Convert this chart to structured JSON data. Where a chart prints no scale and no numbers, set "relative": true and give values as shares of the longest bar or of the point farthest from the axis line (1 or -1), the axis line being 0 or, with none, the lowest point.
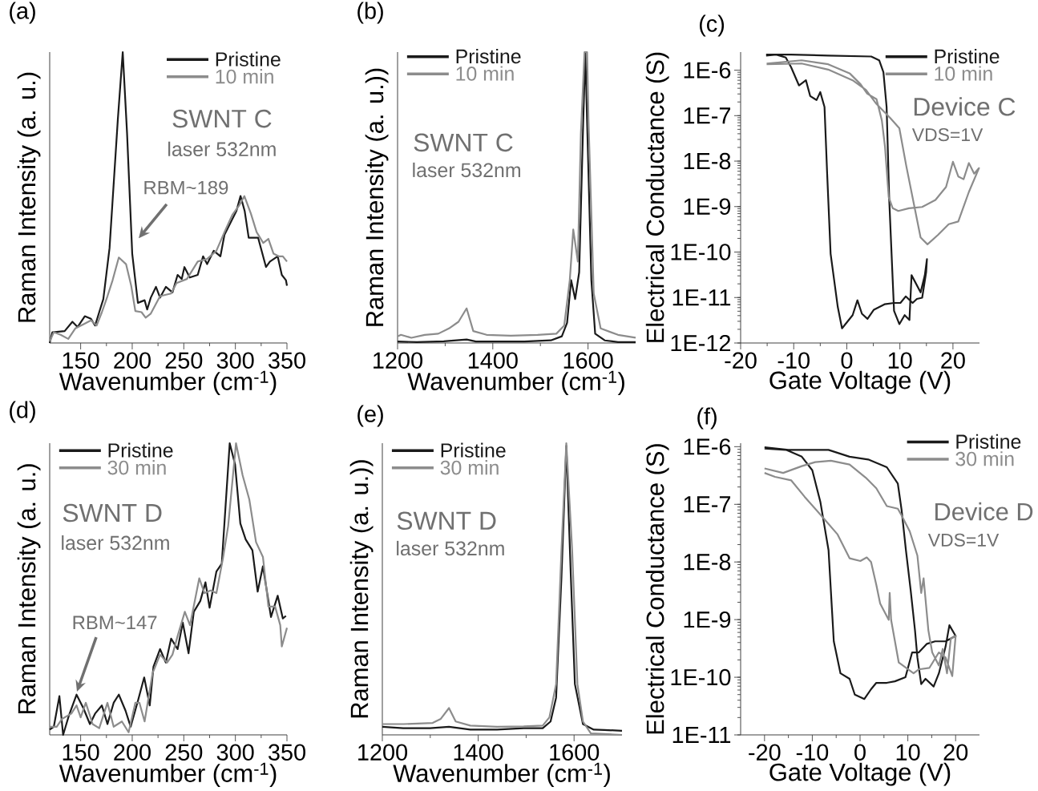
{
  "chart_data": [
    {
      "type": "line",
      "title": "(a)",
      "xlabel": "Wavenumber (cm$^{-1}$)",
      "ylabel": "Raman Intensity (a. u.)",
      "relative": true,
      "xlim": [
        120,
        350
      ],
      "xticks": [
        150,
        200,
        250,
        300,
        350
      ],
      "legend": "top right",
      "series": [
        {
          "name": "Pristine",
          "color": "#1a1a1a",
          "x": [
            120,
            122.6,
            134.5,
            142,
            147,
            154,
            160,
            164,
            168,
            172,
            178,
            186,
            190.8,
            195,
            200,
            205.5,
            212,
            214.5,
            218,
            223,
            227,
            232.6,
            239,
            244,
            248,
            250.6,
            255.8,
            263.5,
            268.7,
            272.6,
            279,
            285.5,
            289.4,
            295.8,
            301,
            305,
            309,
            312.9,
            322,
            329.7,
            333.5,
            341,
            345,
            349,
            350
          ],
          "values": [
            0,
            0.037,
            0.041,
            0.073,
            0.055,
            0.092,
            0.083,
            0.06,
            0.106,
            0.151,
            0.326,
            0.766,
            1.0,
            0.72,
            0.307,
            0.138,
            0.147,
            0.115,
            0.156,
            0.193,
            0.156,
            0.193,
            0.174,
            0.234,
            0.22,
            0.261,
            0.225,
            0.234,
            0.298,
            0.271,
            0.317,
            0.298,
            0.372,
            0.417,
            0.454,
            0.505,
            0.454,
            0.362,
            0.362,
            0.261,
            0.28,
            0.298,
            0.234,
            0.216,
            0.197
          ]
        },
        {
          "name": "10 min",
          "color": "#8c8c8c",
          "x": [
            120,
            124,
            130.6,
            138,
            144.8,
            152.6,
            160,
            165.5,
            170.6,
            176,
            181,
            187,
            194,
            199,
            203,
            209,
            213,
            218,
            227,
            237.7,
            242.9,
            253,
            263.5,
            272.6,
            281.6,
            289.4,
            297,
            303.5,
            308.7,
            315,
            320.6,
            327,
            332,
            337,
            342,
            346,
            350
          ],
          "values": [
            0.005,
            0.037,
            0.028,
            0.014,
            0.05,
            0.064,
            0.078,
            0.06,
            0.106,
            0.161,
            0.216,
            0.294,
            0.271,
            0.197,
            0.11,
            0.106,
            0.087,
            0.101,
            0.161,
            0.17,
            0.206,
            0.22,
            0.28,
            0.289,
            0.317,
            0.381,
            0.44,
            0.472,
            0.505,
            0.445,
            0.381,
            0.344,
            0.358,
            0.307,
            0.298,
            0.298,
            0.28
          ]
        }
      ],
      "annotations": [
        "SWNT C",
        "laser 532nm",
        "RBM~189"
      ]
    },
    {
      "type": "line",
      "title": "(b)",
      "xlabel": "Wavenumber (cm$^{-1}$)",
      "ylabel": "Raman Intensity (a. u.))",
      "relative": true,
      "xlim": [
        1200,
        1700
      ],
      "xticks": [
        1200,
        1400,
        1600
      ],
      "legend": "top left",
      "series": [
        {
          "name": "Pristine",
          "color": "#1a1a1a",
          "x": [
            1200,
            1240.6,
            1297,
            1345,
            1364.5,
            1466,
            1522,
            1545,
            1556,
            1564.5,
            1573,
            1581.4,
            1590,
            1594.4,
            1598,
            1607,
            1615,
            1635,
            1663,
            1700
          ],
          "values": [
            0.005,
            0.003,
            0.006,
            0.012,
            0.005,
            0.005,
            0.009,
            0.023,
            0.069,
            0.216,
            0.151,
            0.243,
            0.766,
            1.0,
            0.766,
            0.216,
            0.032,
            0.009,
            0.003,
            0.003
          ]
        },
        {
          "name": "10 min",
          "color": "#8c8c8c",
          "x": [
            1200,
            1207,
            1229,
            1257,
            1285.6,
            1308,
            1328,
            1345,
            1359,
            1387,
            1437.7,
            1494,
            1533.5,
            1550,
            1561.7,
            1569,
            1578.6,
            1585,
            1592.7,
            1598,
            1601,
            1612,
            1626.5,
            1663,
            1700
          ],
          "values": [
            0.023,
            0.028,
            0.018,
            0.028,
            0.032,
            0.05,
            0.073,
            0.119,
            0.041,
            0.028,
            0.025,
            0.028,
            0.032,
            0.06,
            0.216,
            0.39,
            0.28,
            0.72,
            1.0,
            1.0,
            0.766,
            0.17,
            0.05,
            0.028,
            0.018
          ]
        }
      ],
      "annotations": [
        "SWNT C",
        "laser 532nm"
      ]
    },
    {
      "type": "line",
      "title": "(c)",
      "xlabel": "Gate Voltage (V)",
      "ylabel": "Electrical Conductance (S)",
      "log": "y",
      "xlim": [
        -20,
        25
      ],
      "xticks": [
        -20,
        -10,
        0,
        10,
        20
      ],
      "ylim": [
        1e-12,
        2.5e-06
      ],
      "yticks": [
        {
          "value": 1e-12,
          "label": "1E-12"
        },
        {
          "value": 1e-11,
          "label": "1E-11"
        },
        {
          "value": 1e-10,
          "label": "1E-10"
        },
        {
          "value": 1e-09,
          "label": "1E-9"
        },
        {
          "value": 1e-08,
          "label": "1E-8"
        },
        {
          "value": 1e-07,
          "label": "1E-7"
        },
        {
          "value": 1e-06,
          "label": "1E-6"
        }
      ],
      "legend": "top right",
      "series": [
        {
          "name": "Pristine",
          "color": "#1a1a1a",
          "x": [
            -15.2,
            -10.5,
            -3.5,
            4.6,
            6.1,
            6.9,
            7.5,
            8.0,
            8.65,
            8.9,
            9.9,
            10.9,
            11.8,
            12.2,
            13.9,
            14.7,
            15.1,
            14.95,
            14.2,
            13.2,
            12.4,
            11.1,
            10.1,
            8.9,
            7.1,
            5.1,
            3.9,
            2.85,
            2.0,
            1.1,
            -0.9,
            -1.7,
            -3.05,
            -3.7,
            -4.2,
            -5.0,
            -5.7,
            -6.9,
            -7.7,
            -9.0,
            -10.5,
            -11.5,
            -13.3,
            -15.2
          ],
          "values": [
            2.2e-06,
            2.2e-06,
            2.1e-06,
            2e-06,
            1.65e-06,
            9e-07,
            1.55e-07,
            1.37e-09,
            2.4e-11,
            5.1e-12,
            2.6e-12,
            4.1e-12,
            3.2e-12,
            3.1e-11,
            1.3e-11,
            3.1e-11,
            7e-11,
            3.6e-11,
            9.9e-12,
            9.3e-12,
            7.6e-12,
            1.06e-11,
            7.6e-12,
            7.6e-12,
            7.1e-12,
            5.4e-12,
            3.4e-12,
            4.4e-12,
            8.7e-12,
            4.1e-12,
            2.1e-12,
            6.2e-12,
            9.2e-11,
            5.3e-09,
            1.55e-07,
            3.3e-07,
            2.2e-07,
            2.7e-07,
            6e-07,
            4.6e-07,
            1.17e-06,
            1.9e-06,
            2.2e-06,
            2.1e-06
          ]
        },
        {
          "name": "10 min",
          "color": "#8c8c8c",
          "x": [
            -15.1,
            -8.5,
            -3.5,
            1.1,
            3.6,
            5.6,
            8.15,
            9.9,
            11.2,
            12.7,
            13.9,
            15.2,
            17.2,
            19.2,
            21.0,
            23.0,
            24.9,
            24.0,
            23.0,
            22.0,
            21.0,
            20.0,
            18.7,
            16.7,
            14.2,
            11.7,
            9.7,
            8.65,
            7.9,
            7.2,
            6.6,
            5.6,
            3.85,
            2.6,
            0.6,
            -3.5,
            -8.5,
            -15.1
          ],
          "values": [
            1.35e-06,
            1.4e-06,
            1.03e-06,
            6e-07,
            3.7e-07,
            1.8e-07,
            9e-08,
            5.3e-08,
            7.9e-09,
            1.05e-09,
            2.1e-10,
            1.48e-10,
            2.4e-10,
            4.1e-10,
            4.7e-10,
            2.1e-09,
            7e-09,
            5.3e-09,
            9.1e-09,
            4e-09,
            4.6e-09,
            9.7e-09,
            2.7e-09,
            1.4e-09,
            9.8e-10,
            9.2e-10,
            8e-10,
            9.2e-10,
            1.6e-09,
            2.05e-08,
            7.9e-08,
            2.3e-07,
            3.05e-07,
            4.9e-07,
            8.4e-07,
            1.35e-06,
            1.65e-06,
            1.4e-06
          ]
        }
      ],
      "annotations": [
        "Device C",
        "VDS=1V"
      ]
    },
    {
      "type": "line",
      "title": "(d)",
      "xlabel": "Wavenumber (cm$^{-1}$)",
      "ylabel": "Raman Intensity (a. u.)",
      "relative": true,
      "xlim": [
        120,
        350
      ],
      "xticks": [
        150,
        200,
        250,
        300,
        350
      ],
      "legend": "top left",
      "series": [
        {
          "name": "Pristine",
          "color": "#1a1a1a",
          "x": [
            120,
            124,
            129.4,
            133,
            138.4,
            146,
            152.6,
            159,
            164,
            170.6,
            176,
            182,
            187,
            193.5,
            198.5,
            205,
            211.6,
            217,
            220.6,
            227,
            232.6,
            237.7,
            244,
            249,
            254.6,
            259.7,
            266,
            271,
            275,
            281.6,
            286.8,
            294.5,
            299.7,
            304.8,
            310,
            316.5,
            321.6,
            326.7,
            334.5,
            341,
            346,
            349
          ],
          "values": [
            0.018,
            0.028,
            0.133,
            0,
            0.064,
            0.138,
            0.092,
            0.037,
            0.073,
            0.101,
            0.037,
            0.11,
            0.138,
            0.083,
            0.028,
            0.11,
            0.197,
            0.101,
            0.234,
            0.294,
            0.248,
            0.33,
            0.294,
            0.385,
            0.28,
            0.422,
            0.459,
            0.523,
            0.436,
            0.56,
            0.587,
            1.0,
            0.927,
            0.725,
            0.67,
            0.633,
            0.491,
            0.578,
            0.404,
            0.477,
            0.399,
            0.408
          ]
        },
        {
          "name": "30 min",
          "color": "#8c8c8c",
          "x": [
            120,
            126.8,
            132,
            141,
            146,
            150,
            155,
            161.6,
            168,
            176,
            182,
            190,
            196.5,
            203,
            207,
            212,
            219.7,
            227,
            233.9,
            239,
            244,
            251,
            256,
            265,
            270,
            276,
            281.6,
            288,
            293,
            300.6,
            307,
            313.5,
            320,
            326.7,
            332,
            338.5,
            343.5,
            345,
            350
          ],
          "values": [
            0.028,
            0.028,
            0.055,
            0.073,
            0.101,
            0.06,
            0.11,
            0.037,
            0.023,
            0.11,
            0.028,
            0.046,
            0.009,
            0.11,
            0.11,
            0.046,
            0.211,
            0.275,
            0.248,
            0.275,
            0.339,
            0.422,
            0.376,
            0.537,
            0.486,
            0.495,
            0.486,
            0.606,
            0.716,
            1.0,
            0.89,
            0.807,
            0.661,
            0.61,
            0.44,
            0.44,
            0.376,
            0.303,
            0.367
          ]
        }
      ],
      "annotations": [
        "SWNT D",
        "laser 532nm",
        {
          "text": "RBM~147",
          "x": 146.4,
          "y": 0.148
        }
      ]
    },
    {
      "type": "line",
      "title": "(e)",
      "xlabel": "Wavenumber (cm$^{-1}$)",
      "ylabel": "Raman Intensity (a. u.))",
      "relative": true,
      "xlim": [
        1200,
        1700
      ],
      "xticks": [
        1200,
        1400,
        1600
      ],
      "legend": "top left",
      "series": [
        {
          "name": "Pristine",
          "color": "#1a1a1a",
          "x": [
            1200,
            1243.6,
            1299.6,
            1339,
            1383.5,
            1439.4,
            1495,
            1534.6,
            1551,
            1562.5,
            1573.7,
            1583.8,
            1593.3,
            1601.7,
            1618.5,
            1641,
            1663,
            1700
          ],
          "values": [
            0.028,
            0.023,
            0.023,
            0.028,
            0.018,
            0.018,
            0.023,
            0.023,
            0.046,
            0.128,
            0.541,
            0.991,
            0.541,
            0.174,
            0.037,
            0.018,
            0.017,
            0.014
          ]
        },
        {
          "name": "30 min",
          "color": "#8c8c8c",
          "x": [
            1200,
            1243.6,
            1305,
            1322,
            1339,
            1353,
            1383.5,
            1439.4,
            1495,
            1534.6,
            1548.5,
            1562.5,
            1573.7,
            1583.8,
            1596,
            1607,
            1618.5,
            1635,
            1700
          ],
          "values": [
            0.037,
            0.037,
            0.041,
            0.055,
            0.092,
            0.046,
            0.032,
            0.028,
            0.029,
            0.032,
            0.06,
            0.174,
            0.633,
            1.0,
            0.633,
            0.174,
            0.046,
            0.005,
            0
          ]
        }
      ],
      "annotations": [
        "SWNT D",
        "laser 532nm"
      ]
    },
    {
      "type": "line",
      "title": "(f)",
      "xlabel": "Gate Voltage (V)",
      "ylabel": "Electrical Conductance (S)",
      "log": "y",
      "xlim": [
        -25,
        25
      ],
      "xticks": [
        -20,
        -10,
        0,
        10,
        20
      ],
      "ylim": [
        1e-11,
        1.15e-06
      ],
      "yticks": [
        {
          "value": 1e-11,
          "label": "1E-11"
        },
        {
          "value": 1e-10,
          "label": "1E-10"
        },
        {
          "value": 1e-09,
          "label": "1E-9"
        },
        {
          "value": 1e-08,
          "label": "1E-8"
        },
        {
          "value": 1e-07,
          "label": "1E-7"
        },
        {
          "value": 1e-06,
          "label": "1E-6"
        }
      ],
      "legend": "top right",
      "series": [
        {
          "name": "Pristine",
          "color": "#1a1a1a",
          "x": [
            -20,
            -15,
            -9.4,
            -6.6,
            -2.2,
            1.7,
            5.6,
            7.9,
            8.7,
            9.6,
            10.6,
            11.5,
            12.0,
            12.8,
            13.7,
            15.4,
            16.5,
            17.9,
            18.7,
            20.0,
            17.9,
            15.7,
            14.0,
            12.3,
            10.9,
            9.5,
            7.3,
            5.6,
            3.4,
            2.3,
            0.9,
            -1.1,
            -2.2,
            -4.1,
            -5.5,
            -6.6,
            -8.3,
            -10.0,
            -12.2,
            -15.5,
            -20
          ],
          "values": [
            9.8e-07,
            8.8e-07,
            8.8e-07,
            8.8e-07,
            6.7e-07,
            6e-07,
            4.4e-07,
            2.3e-07,
            7.9e-08,
            1.6e-08,
            3.2e-09,
            6.5e-10,
            2.2e-10,
            7.6e-11,
            9.4e-11,
            6.9e-11,
            1.17e-10,
            3.4e-10,
            8e-10,
            5.2e-10,
            4.2e-10,
            4.2e-10,
            3.8e-10,
            2.7e-10,
            2.7e-10,
            1e-10,
            8.5e-11,
            8e-11,
            8e-11,
            6.2e-11,
            4.2e-11,
            5e-11,
            9.4e-11,
            1.17e-10,
            4.2e-10,
            1.6e-08,
            1.09e-07,
            3.9e-07,
            6.7e-07,
            8.8e-07,
            9.3e-07
          ]
        },
        {
          "name": "30 min",
          "color": "#8c8c8c",
          "x": [
            -20,
            -16.1,
            -12.2,
            -9.4,
            -6.1,
            -2.2,
            1.2,
            3.4,
            5.6,
            7.9,
            8.7,
            10.4,
            12.0,
            12.8,
            13.3,
            14.3,
            15.1,
            16.5,
            17.3,
            18.2,
            19.0,
            20.0,
            19.3,
            17.9,
            16.5,
            14.5,
            12.3,
            11.2,
            8.1,
            6.5,
            6.2,
            6.0,
            4.2,
            3.4,
            2.3,
            1.4,
            0.06,
            -2.2,
            -4.7,
            -7.7,
            -11.6,
            -14.4,
            -17.8,
            -20
          ],
          "values": [
            4.2e-07,
            3.5e-07,
            4.6e-07,
            5.4e-07,
            5.7e-07,
            4.9e-07,
            2.9e-07,
            1.9e-07,
            9.3e-08,
            8.4e-08,
            6.4e-08,
            3.4e-08,
            1.29e-08,
            2.9e-09,
            5.2e-09,
            6.5e-10,
            2.7e-10,
            1.6e-10,
            3.1e-10,
            1.17e-10,
            4.7e-10,
            5.2e-10,
            1.05e-10,
            2.2e-10,
            2.7e-10,
            1.45e-10,
            1.37e-10,
            1.17e-10,
            1.8e-10,
            9.9e-10,
            2.9e-09,
            9.9e-10,
            1.9e-09,
            4e-09,
            1e-08,
            1.2e-08,
            1.04e-08,
            1.16e-08,
            3e-08,
            5.8e-08,
            1.35e-07,
            2.6e-07,
            3e-07,
            3.5e-07
          ]
        }
      ],
      "annotations": [
        "Device D",
        "VDS=1V"
      ]
    }
  ]
}
